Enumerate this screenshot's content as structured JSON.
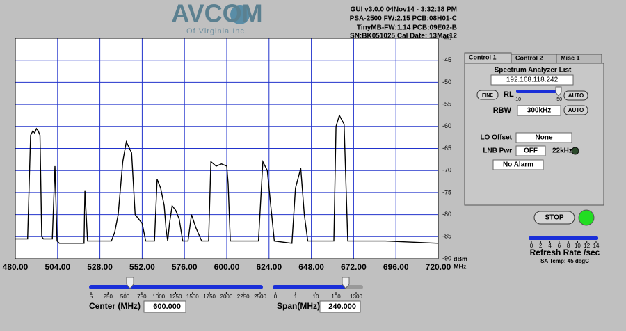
{
  "header": {
    "logo": "AVCOM",
    "logo_sub": "Of Virginia Inc.",
    "info": [
      "GUI v3.0.0  04Nov14 - 3:32:38 PM",
      "PSA-2500 FW:2.15 PCB:08H01-C",
      "TinyMB-FW:1.14  PCB:09E02-B",
      "SN:BK051025  Cal Date: 13Mar12"
    ]
  },
  "chart_data": {
    "type": "line",
    "color": "#000000",
    "grid": true,
    "y_unit": "dBm",
    "x_unit": "MHz",
    "xlim": [
      480,
      720
    ],
    "ylim": [
      -90,
      -40
    ],
    "xticks": [
      {
        "value": 480,
        "label": "480.00"
      },
      {
        "value": 504,
        "label": "504.00"
      },
      {
        "value": 528,
        "label": "528.00"
      },
      {
        "value": 552,
        "label": "552.00"
      },
      {
        "value": 576,
        "label": "576.00"
      },
      {
        "value": 600,
        "label": "600.00"
      },
      {
        "value": 624,
        "label": "624.00"
      },
      {
        "value": 648,
        "label": "648.00"
      },
      {
        "value": 672,
        "label": "672.00"
      },
      {
        "value": 696,
        "label": "696.00"
      },
      {
        "value": 720,
        "label": "720.00"
      }
    ],
    "yticks": [
      -40,
      -45,
      -50,
      -55,
      -60,
      -65,
      -70,
      -75,
      -80,
      -85,
      -90
    ],
    "x": [
      480,
      487,
      488.7,
      490,
      491,
      492,
      493,
      494,
      495,
      496,
      501,
      502.5,
      503.7,
      505,
      519,
      519.5,
      521,
      534.5,
      536.4,
      538.4,
      541,
      543,
      546,
      548,
      552,
      554,
      559,
      560.5,
      562.5,
      564.5,
      565.5,
      566.5,
      567.5,
      569,
      571,
      573,
      575,
      578,
      580,
      582.5,
      585.8,
      589.7,
      591,
      594,
      597,
      600,
      600.8,
      602,
      607.5,
      618,
      620.5,
      623,
      625,
      627,
      637,
      639,
      642,
      644,
      646,
      660.8,
      662,
      663.9,
      666.6,
      668.7,
      672,
      690,
      720
    ],
    "values": [
      -85.5,
      -85.5,
      -62,
      -61,
      -61.5,
      -60.5,
      -61,
      -62,
      -85,
      -85.5,
      -85.5,
      -69,
      -86,
      -86.5,
      -86.5,
      -74.5,
      -86,
      -86,
      -84,
      -80,
      -68,
      -63.5,
      -66,
      -80,
      -82,
      -86,
      -86,
      -72,
      -74,
      -78,
      -83,
      -86,
      -82,
      -78,
      -79,
      -81,
      -86,
      -86,
      -80,
      -83,
      -86,
      -86,
      -68,
      -69,
      -68.5,
      -69,
      -73,
      -86,
      -86,
      -86,
      -68,
      -70,
      -78,
      -86,
      -86.5,
      -74,
      -69.5,
      -80,
      -86,
      -86,
      -60,
      -57.5,
      -59.5,
      -86,
      -86,
      -86,
      -86.5
    ]
  },
  "controls": {
    "center": {
      "label": "Center (MHz)",
      "value": "600.000",
      "ticks": [
        "5",
        "250",
        "500",
        "750",
        "1000",
        "1250",
        "1500",
        "1750",
        "2000",
        "2250",
        "2500"
      ]
    },
    "span": {
      "label": "Span(MHz)",
      "value": "240.000",
      "ticks": [
        "0",
        "1",
        "10",
        "100",
        "1300"
      ]
    }
  },
  "panel": {
    "tabs": [
      "Control 1",
      "Control 2",
      "Misc 1"
    ],
    "list_title": "Spectrum Analyzer List",
    "ip": "192.168.118.242",
    "fine": "FINE",
    "rl_label": "RL",
    "rl_ticks": [
      "-10",
      "-50"
    ],
    "auto": "AUTO",
    "rbw_label": "RBW",
    "rbw_value": "300kHz",
    "lo_label": "LO Offset",
    "lo_value": "None",
    "lnb_label": "LNB Pwr",
    "lnb_value": "OFF",
    "tone": "22kHz",
    "alarm": "No Alarm"
  },
  "status": {
    "stop": "STOP",
    "refresh_ticks": [
      "0",
      "2",
      "4",
      "6",
      "8",
      "10",
      "12",
      "14"
    ],
    "refresh_label": "Refresh Rate /sec",
    "temp": "SA Temp: 45 degC"
  }
}
